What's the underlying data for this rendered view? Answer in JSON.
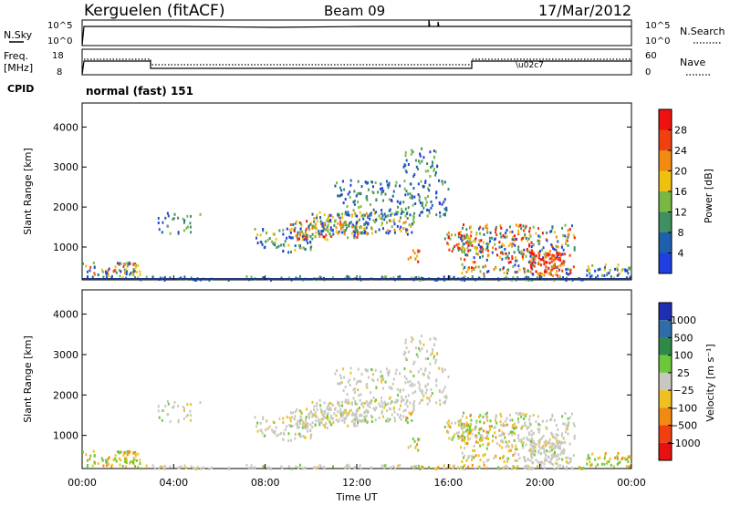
{
  "header": {
    "station": "Kerguelen (fitACF)",
    "beam": "Beam 09",
    "date": "17/Mar/2012"
  },
  "noise_panel": {
    "left_label": "N.Sky",
    "right_label": "N.Search",
    "ticks": [
      "10^5",
      "10^0"
    ]
  },
  "freq_panel": {
    "left_label_1": "Freq.",
    "left_label_2": "[MHz]",
    "left_ticks": [
      "18",
      "8"
    ],
    "right_label": "Nave",
    "right_ticks": [
      "60",
      "0"
    ],
    "cpid_label": "CPID",
    "cpid_value": "normal (fast) 151"
  },
  "chart_data": [
    {
      "type": "heatmap",
      "title": "",
      "xlabel": "",
      "ylabel": "Slant Range [km]",
      "x_range_hours": [
        0,
        24
      ],
      "ylim": [
        180,
        4600
      ],
      "yticks": [
        "1000",
        "2000",
        "3000",
        "4000"
      ],
      "colorbar": {
        "label": "Power [dB]",
        "ticks": [
          "4",
          "8",
          "12",
          "16",
          "20",
          "24",
          "28"
        ],
        "colors": [
          "#1f3fe0",
          "#1e5fae",
          "#3f8f60",
          "#7ab846",
          "#f0c010",
          "#f08a10",
          "#f04010",
          "#f01010"
        ]
      }
    },
    {
      "type": "heatmap",
      "title": "",
      "xlabel": "Time UT",
      "ylabel": "Slant Range [km]",
      "x_range_hours": [
        0,
        24
      ],
      "ylim": [
        180,
        4600
      ],
      "xticks": [
        "00:00",
        "04:00",
        "08:00",
        "12:00",
        "16:00",
        "20:00",
        "00:00"
      ],
      "yticks": [
        "1000",
        "2000",
        "3000",
        "4000"
      ],
      "colorbar": {
        "label": "Velocity [m s⁻¹]",
        "ticks": [
          "1000",
          "500",
          "100",
          "25",
          "−25",
          "−100",
          "−500",
          "−1000"
        ],
        "colors": [
          "#1f2fb0",
          "#2f6ca8",
          "#2f8a4a",
          "#6cc83a",
          "#c8c8c0",
          "#f0c020",
          "#f08a10",
          "#f04010",
          "#e81010"
        ]
      }
    }
  ]
}
